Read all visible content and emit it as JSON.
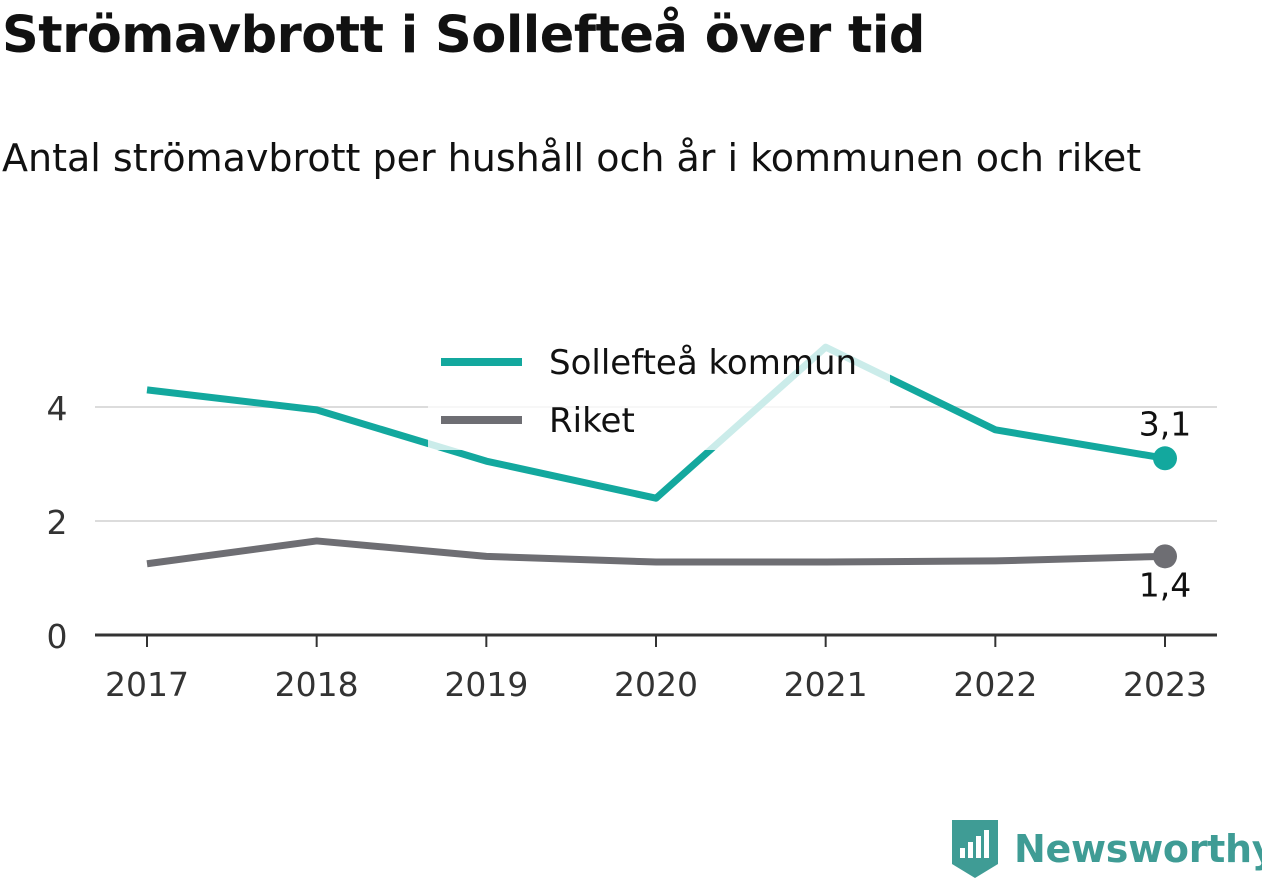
{
  "title": "Strömavbrott i Sollefteå över tid",
  "subtitle": "Antal strömavbrott per hushåll och år i kommunen och riket",
  "brand": {
    "name": "Newsworthy",
    "color": "#3f9c95",
    "icon": "bar-chart-badge-icon"
  },
  "chart_data": {
    "type": "line",
    "title": "Strömavbrott i Sollefteå över tid",
    "subtitle": "Antal strömavbrott per hushåll och år i kommunen och riket",
    "x": [
      "2017",
      "2018",
      "2019",
      "2020",
      "2021",
      "2022",
      "2023"
    ],
    "ylim": [
      0,
      5.2
    ],
    "yticks": [
      0,
      2,
      4
    ],
    "grid": true,
    "legend": "top-center",
    "series": [
      {
        "name": "Sollefteå kommun",
        "color": "#13a89e",
        "values": [
          4.3,
          3.95,
          3.05,
          2.4,
          5.05,
          3.6,
          3.1
        ],
        "end_label": "3,1"
      },
      {
        "name": "Riket",
        "color": "#6e6e73",
        "values": [
          1.25,
          1.65,
          1.38,
          1.28,
          1.28,
          1.3,
          1.38
        ],
        "end_label": "1,4"
      }
    ]
  }
}
